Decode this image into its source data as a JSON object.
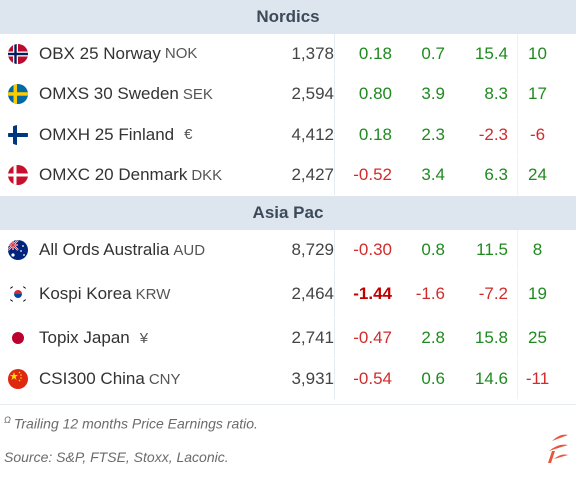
{
  "sections": [
    {
      "title": "Nordics",
      "rows": [
        {
          "flag": "norway-flag-icon",
          "name": "OBX 25 Norway",
          "ccy": "NOK",
          "level": "1,378",
          "day": "0.18",
          "wk": "0.7",
          "ytd": "15.4",
          "pe": "10"
        },
        {
          "flag": "sweden-flag-icon",
          "name": "OMXS 30 Sweden",
          "ccy": "SEK",
          "level": "2,594",
          "day": "0.80",
          "wk": "3.9",
          "ytd": "8.3",
          "pe": "17"
        },
        {
          "flag": "finland-flag-icon",
          "name": "OMXH 25 Finland",
          "ccy": "€",
          "level": "4,412",
          "day": "0.18",
          "wk": "2.3",
          "ytd": "-2.3",
          "pe": "-6"
        },
        {
          "flag": "denmark-flag-icon",
          "name": "OMXC 20 Denmark",
          "ccy": "DKK",
          "level": "2,427",
          "day": "-0.52",
          "wk": "3.4",
          "ytd": "6.3",
          "pe": "24"
        }
      ]
    },
    {
      "title": "Asia Pac",
      "rows": [
        {
          "flag": "australia-flag-icon",
          "name": "All Ords Australia",
          "ccy": "AUD",
          "level": "8,729",
          "day": "-0.30",
          "wk": "0.8",
          "ytd": "11.5",
          "pe": "8"
        },
        {
          "flag": "korea-flag-icon",
          "name": "Kospi Korea",
          "ccy": "KRW",
          "level": "2,464",
          "day": "-1.44",
          "wk": "-1.6",
          "ytd": "-7.2",
          "pe": "19"
        },
        {
          "flag": "japan-flag-icon",
          "name": "Topix Japan",
          "ccy": "¥",
          "level": "2,741",
          "day": "-0.47",
          "wk": "2.8",
          "ytd": "15.8",
          "pe": "25"
        },
        {
          "flag": "china-flag-icon",
          "name": "CSI300 China",
          "ccy": "CNY",
          "level": "3,931",
          "day": "-0.54",
          "wk": "0.6",
          "ytd": "14.6",
          "pe": "-11"
        }
      ]
    }
  ],
  "footer": {
    "note_marker": "Ω",
    "note": "Trailing 12 months Price Earnings ratio.",
    "source": "Source: S&P, FTSE, Stoxx, Laconic."
  },
  "colors": {
    "positive": "#1f8a1f",
    "negative": "#d22b2b",
    "header_bg": "#dde6ee",
    "logo": "#e8563a"
  }
}
